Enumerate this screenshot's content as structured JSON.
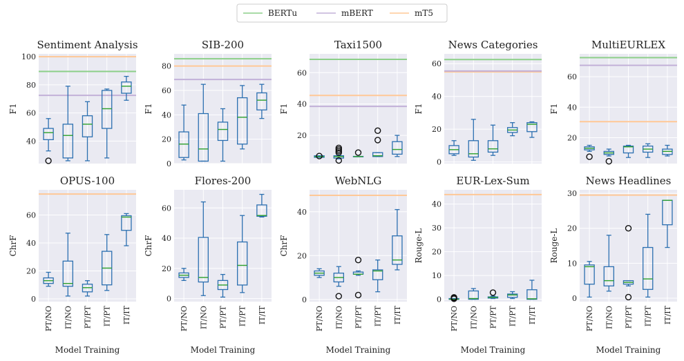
{
  "legend": [
    {
      "name": "BERTu",
      "color": "#8ccf88"
    },
    {
      "name": "mBERT",
      "color": "#c2b0d8"
    },
    {
      "name": "mT5",
      "color": "#ffc896"
    }
  ],
  "colors": {
    "box": "#2b6fb0",
    "median": "#2ca02c",
    "grid_bg": "#eaeaf2"
  },
  "categories": [
    "PT/NO",
    "IT/NO",
    "PT/PT",
    "IT/PT",
    "IT/IT"
  ],
  "xlabel": "Model Training",
  "chart_data": [
    {
      "type": "box",
      "title": "Sentiment Analysis",
      "ylabel": "F1",
      "ylim": [
        24,
        102
      ],
      "yticks": [
        40,
        60,
        80,
        100
      ],
      "reference_lines": {
        "BERTu": 89.5,
        "mBERT": 72.5,
        "mT5": 100
      },
      "boxes": [
        {
          "category": "PT/NO",
          "whisker_low": 33,
          "q1": 41,
          "median": 46,
          "q3": 49,
          "whisker_high": 56,
          "outliers": [
            26
          ]
        },
        {
          "category": "IT/NO",
          "whisker_low": 26,
          "q1": 28,
          "median": 44,
          "q3": 52,
          "whisker_high": 79,
          "outliers": []
        },
        {
          "category": "PT/PT",
          "whisker_low": 26,
          "q1": 43,
          "median": 52,
          "q3": 58,
          "whisker_high": 68,
          "outliers": []
        },
        {
          "category": "IT/PT",
          "whisker_low": 28,
          "q1": 49,
          "median": 63,
          "q3": 76,
          "whisker_high": 77,
          "outliers": []
        },
        {
          "category": "IT/IT",
          "whisker_low": 69,
          "q1": 74,
          "median": 79,
          "q3": 82,
          "whisker_high": 86,
          "outliers": []
        }
      ]
    },
    {
      "type": "box",
      "title": "SIB-200",
      "ylabel": "F1",
      "ylim": [
        0,
        90
      ],
      "yticks": [
        0,
        20,
        40,
        60,
        80
      ],
      "reference_lines": {
        "BERTu": 86,
        "mBERT": 69,
        "mT5": 80
      },
      "boxes": [
        {
          "category": "PT/NO",
          "whisker_low": 3,
          "q1": 5,
          "median": 16,
          "q3": 26,
          "whisker_high": 48,
          "outliers": []
        },
        {
          "category": "IT/NO",
          "whisker_low": 2,
          "q1": 2,
          "median": 12,
          "q3": 41,
          "whisker_high": 65,
          "outliers": []
        },
        {
          "category": "PT/PT",
          "whisker_low": 2,
          "q1": 19,
          "median": 28,
          "q3": 34,
          "whisker_high": 45,
          "outliers": []
        },
        {
          "category": "IT/PT",
          "whisker_low": 12,
          "q1": 16,
          "median": 38,
          "q3": 54,
          "whisker_high": 64,
          "outliers": []
        },
        {
          "category": "IT/IT",
          "whisker_low": 37,
          "q1": 44,
          "median": 52,
          "q3": 58,
          "whisker_high": 65,
          "outliers": []
        }
      ]
    },
    {
      "type": "box",
      "title": "Taxi1500",
      "ylabel": "F1",
      "ylim": [
        2,
        72
      ],
      "yticks": [
        20,
        40,
        60
      ],
      "reference_lines": {
        "BERTu": 68.5,
        "mBERT": 38.5,
        "mT5": 45.5
      },
      "boxes": [
        {
          "category": "PT/NO",
          "whisker_low": 6,
          "q1": 6,
          "median": 6.5,
          "q3": 7,
          "whisker_high": 7,
          "outliers": [
            6.8
          ]
        },
        {
          "category": "IT/NO",
          "whisker_low": 5,
          "q1": 5.5,
          "median": 6.5,
          "q3": 7,
          "whisker_high": 7.5,
          "outliers": [
            4,
            9,
            10,
            11,
            12
          ]
        },
        {
          "category": "PT/PT",
          "whisker_low": 6.5,
          "q1": 6.5,
          "median": 6.5,
          "q3": 6.6,
          "whisker_high": 6.6,
          "outliers": [
            9
          ]
        },
        {
          "category": "IT/PT",
          "whisker_low": 6.5,
          "q1": 6.5,
          "median": 7,
          "q3": 9,
          "whisker_high": 9,
          "outliers": [
            17,
            23
          ]
        },
        {
          "category": "IT/IT",
          "whisker_low": 6.5,
          "q1": 8,
          "median": 11,
          "q3": 16,
          "whisker_high": 20,
          "outliers": []
        }
      ]
    },
    {
      "type": "box",
      "title": "News Categories",
      "ylabel": "F1",
      "ylim": [
        -1,
        66
      ],
      "yticks": [
        0,
        20,
        40,
        60
      ],
      "reference_lines": {
        "BERTu": 62.5,
        "mBERT": 55.5,
        "mT5": 55
      },
      "boxes": [
        {
          "category": "PT/NO",
          "whisker_low": 4,
          "q1": 5,
          "median": 7.5,
          "q3": 10,
          "whisker_high": 13,
          "outliers": []
        },
        {
          "category": "IT/NO",
          "whisker_low": 1,
          "q1": 3,
          "median": 5,
          "q3": 13,
          "whisker_high": 26,
          "outliers": []
        },
        {
          "category": "PT/PT",
          "whisker_low": 4,
          "q1": 6,
          "median": 8,
          "q3": 13,
          "whisker_high": 22.5,
          "outliers": []
        },
        {
          "category": "IT/PT",
          "whisker_low": 16,
          "q1": 18,
          "median": 19.5,
          "q3": 21,
          "whisker_high": 24,
          "outliers": []
        },
        {
          "category": "IT/IT",
          "whisker_low": 15,
          "q1": 18.5,
          "median": 23,
          "q3": 24,
          "whisker_high": 24.5,
          "outliers": []
        }
      ]
    },
    {
      "type": "box",
      "title": "MultiEURLEX",
      "ylabel": "F1",
      "ylim": [
        3,
        75
      ],
      "yticks": [
        20,
        40,
        60
      ],
      "reference_lines": {
        "BERTu": 72.5,
        "mBERT": 67.5,
        "mT5": 30.5
      },
      "boxes": [
        {
          "category": "PT/NO",
          "whisker_low": 11,
          "q1": 12,
          "median": 13,
          "q3": 14,
          "whisker_high": 15,
          "outliers": [
            7.5
          ]
        },
        {
          "category": "IT/NO",
          "whisker_low": 8,
          "q1": 9,
          "median": 10,
          "q3": 11,
          "whisker_high": 12.5,
          "outliers": [
            4.5
          ]
        },
        {
          "category": "PT/PT",
          "whisker_low": 7,
          "q1": 10,
          "median": 14,
          "q3": 14.5,
          "whisker_high": 15,
          "outliers": []
        },
        {
          "category": "IT/PT",
          "whisker_low": 7,
          "q1": 10.5,
          "median": 12.5,
          "q3": 14.5,
          "whisker_high": 16,
          "outliers": []
        },
        {
          "category": "IT/IT",
          "whisker_low": 8,
          "q1": 9,
          "median": 11,
          "q3": 12.5,
          "whisker_high": 15,
          "outliers": []
        }
      ]
    },
    {
      "type": "box",
      "title": "OPUS-100",
      "ylabel": "ChrF",
      "ylim": [
        -2,
        78
      ],
      "yticks": [
        0,
        20,
        40,
        60
      ],
      "reference_lines": {
        "mT5": 75
      },
      "boxes": [
        {
          "category": "PT/NO",
          "whisker_low": 9,
          "q1": 11,
          "median": 13,
          "q3": 15,
          "whisker_high": 19,
          "outliers": []
        },
        {
          "category": "IT/NO",
          "whisker_low": 2,
          "q1": 9,
          "median": 11,
          "q3": 27,
          "whisker_high": 47,
          "outliers": []
        },
        {
          "category": "PT/PT",
          "whisker_low": 2,
          "q1": 5,
          "median": 8,
          "q3": 10.5,
          "whisker_high": 13,
          "outliers": []
        },
        {
          "category": "IT/PT",
          "whisker_low": 6,
          "q1": 10,
          "median": 22,
          "q3": 34,
          "whisker_high": 46,
          "outliers": []
        },
        {
          "category": "IT/IT",
          "whisker_low": 38,
          "q1": 49,
          "median": 58.5,
          "q3": 59.5,
          "whisker_high": 61,
          "outliers": []
        }
      ]
    },
    {
      "type": "box",
      "title": "Flores-200",
      "ylabel": "ChrF",
      "ylim": [
        -2,
        72
      ],
      "yticks": [
        0,
        20,
        40,
        60
      ],
      "reference_lines": {},
      "boxes": [
        {
          "category": "PT/NO",
          "whisker_low": 12,
          "q1": 14,
          "median": 15.5,
          "q3": 17,
          "whisker_high": 20,
          "outliers": []
        },
        {
          "category": "IT/NO",
          "whisker_low": 2,
          "q1": 11,
          "median": 14,
          "q3": 40.5,
          "whisker_high": 64,
          "outliers": []
        },
        {
          "category": "PT/PT",
          "whisker_low": 1,
          "q1": 6,
          "median": 9,
          "q3": 12,
          "whisker_high": 16,
          "outliers": []
        },
        {
          "category": "IT/PT",
          "whisker_low": 4,
          "q1": 9,
          "median": 22,
          "q3": 37.5,
          "whisker_high": 55,
          "outliers": []
        },
        {
          "category": "IT/IT",
          "whisker_low": 54,
          "q1": 54.5,
          "median": 55,
          "q3": 62,
          "whisker_high": 69,
          "outliers": []
        }
      ]
    },
    {
      "type": "box",
      "title": "WebNLG",
      "ylabel": "ChrF",
      "ylim": [
        -1,
        50
      ],
      "yticks": [
        0,
        20,
        40
      ],
      "reference_lines": {
        "mT5": 47.5
      },
      "boxes": [
        {
          "category": "PT/NO",
          "whisker_low": 10,
          "q1": 11,
          "median": 12,
          "q3": 13,
          "whisker_high": 14,
          "outliers": []
        },
        {
          "category": "IT/NO",
          "whisker_low": 6,
          "q1": 8,
          "median": 10,
          "q3": 12,
          "whisker_high": 15,
          "outliers": [
            1.5
          ]
        },
        {
          "category": "PT/PT",
          "whisker_low": 11,
          "q1": 11.5,
          "median": 11.5,
          "q3": 12.5,
          "whisker_high": 13,
          "outliers": [
            2,
            18
          ]
        },
        {
          "category": "IT/PT",
          "whisker_low": 3.5,
          "q1": 9,
          "median": 13,
          "q3": 13.5,
          "whisker_high": 18,
          "outliers": []
        },
        {
          "category": "IT/IT",
          "whisker_low": 13.5,
          "q1": 16,
          "median": 18,
          "q3": 29,
          "whisker_high": 41,
          "outliers": []
        }
      ]
    },
    {
      "type": "box",
      "title": "EUR-Lex-Sum",
      "ylabel": "Rouge-L",
      "ylim": [
        -1,
        46
      ],
      "yticks": [
        0,
        10,
        20,
        30,
        40
      ],
      "reference_lines": {
        "mT5": 44
      },
      "boxes": [
        {
          "category": "PT/NO",
          "whisker_low": 0,
          "q1": 0,
          "median": 0,
          "q3": 0.3,
          "whisker_high": 0.3,
          "outliers": [
            0.2,
            0.5,
            0.8
          ]
        },
        {
          "category": "IT/NO",
          "whisker_low": 0,
          "q1": 0,
          "median": 0.3,
          "q3": 3.5,
          "whisker_high": 4.5,
          "outliers": []
        },
        {
          "category": "PT/PT",
          "whisker_low": 0.3,
          "q1": 0.5,
          "median": 0.8,
          "q3": 1,
          "whisker_high": 1.3,
          "outliers": [
            2.8
          ]
        },
        {
          "category": "IT/PT",
          "whisker_low": 0.3,
          "q1": 0.8,
          "median": 1.8,
          "q3": 2.2,
          "whisker_high": 3.2,
          "outliers": []
        },
        {
          "category": "IT/IT",
          "whisker_low": 0,
          "q1": 0,
          "median": 0.2,
          "q3": 4,
          "whisker_high": 8,
          "outliers": []
        }
      ]
    },
    {
      "type": "box",
      "title": "News Headlines",
      "ylabel": "Rouge-L",
      "ylim": [
        -1,
        31
      ],
      "yticks": [
        0,
        10,
        20,
        30
      ],
      "reference_lines": {
        "mT5": 29.5
      },
      "boxes": [
        {
          "category": "PT/NO",
          "whisker_low": 0.3,
          "q1": 4,
          "median": 9,
          "q3": 9.5,
          "whisker_high": 10.5,
          "outliers": []
        },
        {
          "category": "IT/NO",
          "whisker_low": 2,
          "q1": 3.5,
          "median": 5,
          "q3": 9,
          "whisker_high": 18,
          "outliers": []
        },
        {
          "category": "PT/PT",
          "whisker_low": 3.5,
          "q1": 4,
          "median": 4.5,
          "q3": 5,
          "whisker_high": 5,
          "outliers": [
            0.3,
            20
          ]
        },
        {
          "category": "IT/PT",
          "whisker_low": 0.3,
          "q1": 2.5,
          "median": 5.5,
          "q3": 14.5,
          "whisker_high": 24,
          "outliers": []
        },
        {
          "category": "IT/IT",
          "whisker_low": 14.5,
          "q1": 21,
          "median": 28,
          "q3": 28,
          "whisker_high": 28,
          "outliers": []
        }
      ]
    }
  ]
}
